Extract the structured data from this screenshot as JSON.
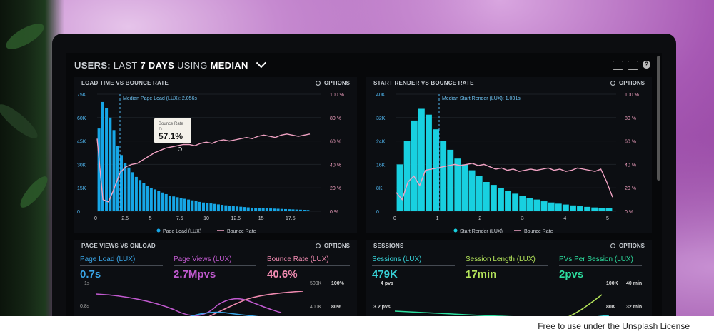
{
  "license": "Free to use under the Unsplash License",
  "header": {
    "p1": "USERS:",
    "p2": "LAST",
    "p3": "7 DAYS",
    "p4": "USING",
    "p5": "MEDIAN"
  },
  "options_label": "OPTIONS",
  "chart_left": {
    "title": "LOAD TIME VS BOUNCE RATE",
    "median_label": "Median Page Load (LUX): 2.056s",
    "tooltip": {
      "label": "Bounce Rate",
      "sub": "7s",
      "value": "57.1%"
    },
    "y_left": [
      "75K",
      "60K",
      "45K",
      "30K",
      "15K",
      "0"
    ],
    "y_right": [
      "100 %",
      "80 %",
      "60 %",
      "40 %",
      "20 %",
      "0 %"
    ],
    "x_ticks": [
      "0",
      "2.5",
      "5",
      "7.5",
      "10",
      "12.5",
      "15",
      "17.5"
    ],
    "legend": [
      "Page Load (LUX)",
      "Bounce Rate"
    ],
    "bars": [
      53,
      70,
      66,
      60,
      52,
      42,
      36,
      31,
      28,
      25,
      22,
      20,
      18,
      16,
      15,
      14,
      13,
      12,
      11,
      10,
      9.5,
      9,
      8.5,
      8,
      7.5,
      7,
      6.5,
      6,
      5.6,
      5.3,
      5,
      4.7,
      4.4,
      4.1,
      3.8,
      3.5,
      3.3,
      3.1,
      2.9,
      2.7,
      2.5,
      2.3,
      2.2,
      2.1,
      2,
      1.9,
      1.8,
      1.7,
      1.6,
      1.5,
      1.4,
      1.3,
      1.2,
      1.1,
      1.0,
      0.9,
      0.8
    ],
    "bounce": [
      62,
      10,
      8,
      20,
      33,
      38,
      40,
      41,
      44,
      47,
      50,
      52,
      54,
      55,
      56,
      57,
      57,
      56,
      58,
      59,
      58,
      60,
      61,
      60,
      61,
      62,
      63,
      62,
      64,
      65,
      64,
      63,
      65,
      66,
      65,
      64,
      65,
      66
    ]
  },
  "chart_right": {
    "title": "START RENDER VS BOUNCE RATE",
    "median_label": "Median Start Render (LUX): 1.031s",
    "y_left": [
      "40K",
      "32K",
      "24K",
      "16K",
      "8K",
      "0"
    ],
    "y_right": [
      "100 %",
      "80 %",
      "60 %",
      "40 %",
      "20 %",
      "0 %"
    ],
    "x_ticks": [
      "0",
      "1",
      "2",
      "3",
      "4",
      "5"
    ],
    "legend": [
      "Start Render (LUX)",
      "Bounce Rate"
    ],
    "bars": [
      16,
      24,
      31,
      35,
      33,
      28,
      24,
      21,
      18,
      16,
      14,
      12,
      10,
      9,
      8,
      7,
      6,
      5.2,
      4.5,
      4,
      3.4,
      3,
      2.6,
      2.3,
      2,
      1.7,
      1.5,
      1.3,
      1.1,
      1.0
    ],
    "bounce": [
      16,
      10,
      25,
      30,
      22,
      35,
      36,
      37,
      38,
      39,
      40,
      39,
      40,
      41,
      39,
      40,
      38,
      36,
      37,
      35,
      36,
      34,
      35,
      36,
      35,
      36,
      37,
      35,
      36,
      34,
      35,
      37,
      36,
      35,
      34,
      36,
      25,
      12
    ]
  },
  "panel_pv": {
    "title": "PAGE VIEWS VS ONLOAD",
    "metrics": [
      {
        "label": "Page Load (LUX)",
        "value": "0.7s",
        "color": "#3aa6e8"
      },
      {
        "label": "Page Views (LUX)",
        "value": "2.7Mpvs",
        "color": "#c25ad0"
      },
      {
        "label": "Bounce Rate (LUX)",
        "value": "40.6%",
        "color": "#f08ab0"
      }
    ],
    "y_left": [
      "1s",
      "0.8s"
    ],
    "y_right_a": [
      "500K",
      "400K"
    ],
    "y_right_b": [
      "100%",
      "80%"
    ]
  },
  "panel_sessions": {
    "title": "SESSIONS",
    "metrics": [
      {
        "label": "Sessions (LUX)",
        "value": "479K",
        "color": "#37d0d6"
      },
      {
        "label": "Session Length (LUX)",
        "value": "17min",
        "color": "#b4e45a"
      },
      {
        "label": "PVs Per Session (LUX)",
        "value": "2pvs",
        "color": "#2de0a0"
      }
    ],
    "y_left": [
      "4 pvs",
      "3.2 pvs"
    ],
    "y_right_a": [
      "100K",
      "80K"
    ],
    "y_right_b": [
      "40 min",
      "32 min"
    ]
  },
  "colors": {
    "bar_left": "#16a6e6",
    "bar_right": "#18d0e0",
    "bounce": "#f2a3c4"
  }
}
